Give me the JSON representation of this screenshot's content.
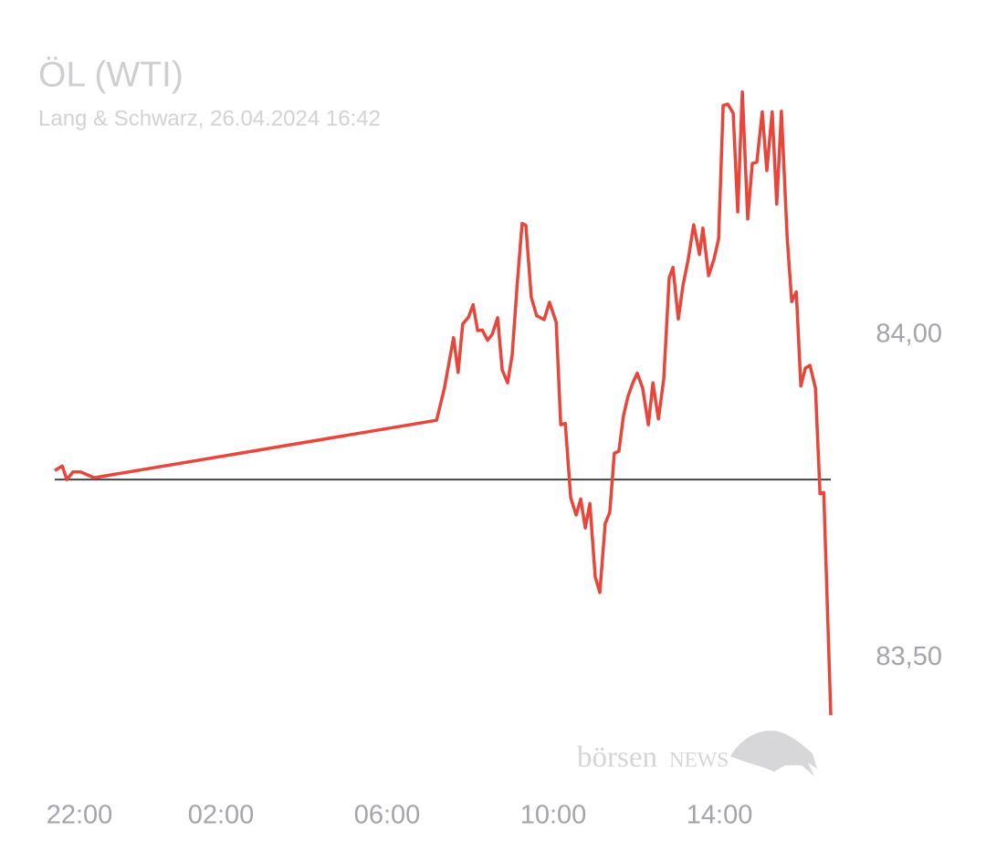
{
  "chart_data": {
    "type": "line",
    "title": "ÖL (WTI)",
    "subtitle": "Lang & Schwarz, 26.04.2024 16:42",
    "watermark": {
      "brand": "börsen",
      "suffix": "NEWS"
    },
    "color": "#e8453b",
    "reference_line": 83.776,
    "x": [
      0,
      0.18,
      0.29,
      0.44,
      0.62,
      0.95,
      9.19,
      9.38,
      9.6,
      9.71,
      9.82,
      9.96,
      10.07,
      10.18,
      10.29,
      10.42,
      10.53,
      10.66,
      10.77,
      10.9,
      11.01,
      11.14,
      11.25,
      11.34,
      11.47,
      11.6,
      11.78,
      11.91,
      12.07,
      12.18,
      12.29,
      12.42,
      12.55,
      12.66,
      12.77,
      12.88,
      13.01,
      13.12,
      13.25,
      13.36,
      13.47,
      13.58,
      13.69,
      13.8,
      13.91,
      14.02,
      14.15,
      14.29,
      14.4,
      14.53,
      14.66,
      14.79,
      14.88,
      15.01,
      15.12,
      15.25,
      15.38,
      15.52,
      15.6,
      15.74,
      15.87,
      15.98,
      16.09,
      16.2,
      16.33,
      16.44,
      16.55,
      16.68,
      16.79,
      16.9,
      17.03,
      17.14,
      17.27,
      17.38,
      17.49,
      17.63,
      17.74,
      17.85,
      17.96,
      18.07,
      18.18,
      18.31,
      18.42,
      18.51,
      18.68
    ],
    "values": [
      83.79,
      83.797,
      83.776,
      83.788,
      83.788,
      83.779,
      83.868,
      83.918,
      83.996,
      83.942,
      84.017,
      84.028,
      84.047,
      84.007,
      84.008,
      83.992,
      84.001,
      84.027,
      83.946,
      83.926,
      83.969,
      84.086,
      84.173,
      84.17,
      84.059,
      84.03,
      84.024,
      84.051,
      84.02,
      83.861,
      83.863,
      83.748,
      83.721,
      83.746,
      83.701,
      83.739,
      83.625,
      83.601,
      83.708,
      83.725,
      83.817,
      83.82,
      83.875,
      83.905,
      83.925,
      83.941,
      83.918,
      83.861,
      83.926,
      83.87,
      83.933,
      84.089,
      84.105,
      84.025,
      84.076,
      84.118,
      84.171,
      84.125,
      84.166,
      84.092,
      84.118,
      84.149,
      84.356,
      84.358,
      84.344,
      84.191,
      84.377,
      84.18,
      84.266,
      84.268,
      84.346,
      84.255,
      84.346,
      84.203,
      84.347,
      84.152,
      84.052,
      84.067,
      83.921,
      83.949,
      83.953,
      83.918,
      83.754,
      83.756,
      83.411
    ],
    "xlim": [
      0,
      18.68
    ],
    "xticks": [
      {
        "value": 0,
        "label": "22:00"
      },
      {
        "value": 4,
        "label": "02:00"
      },
      {
        "value": 8,
        "label": "06:00"
      },
      {
        "value": 12,
        "label": "10:00"
      },
      {
        "value": 16,
        "label": "14:00"
      }
    ],
    "ylim": [
      83.387,
      84.392
    ],
    "yticks": [
      {
        "value": 83.5,
        "label": "83,50"
      },
      {
        "value": 84,
        "label": "84,00"
      }
    ],
    "grid": false
  }
}
